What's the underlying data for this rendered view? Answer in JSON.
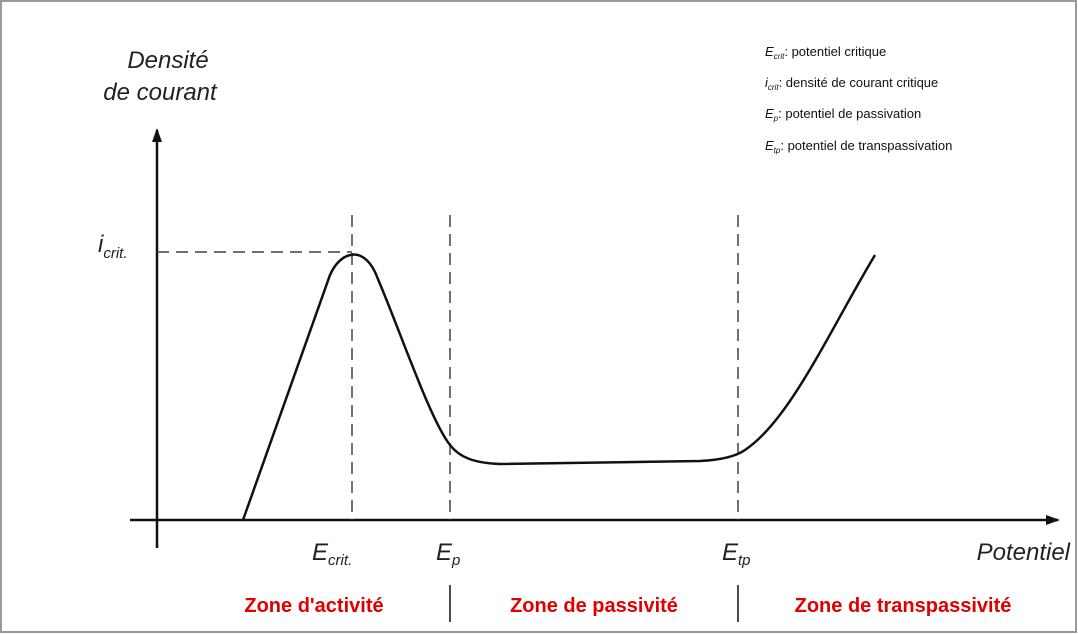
{
  "y_axis_label": [
    "Densité",
    "de courant"
  ],
  "x_axis_label": "Potentiel",
  "peak_label": {
    "symbol": "i",
    "sub": "crit."
  },
  "markers": [
    {
      "symbol": "E",
      "sub": "crit."
    },
    {
      "symbol": "E",
      "sub": "p"
    },
    {
      "symbol": "E",
      "sub": "tp"
    }
  ],
  "legend": [
    {
      "symbol": "E",
      "sub": "crit",
      "text": ": potentiel critique"
    },
    {
      "symbol": "i",
      "sub": "crit",
      "text": ": densité de courant critique"
    },
    {
      "symbol": "E",
      "sub": "p",
      "text": ": potentiel de passivation"
    },
    {
      "symbol": "E",
      "sub": "tp",
      "text": ": potentiel de transpassivation"
    }
  ],
  "zones": [
    "Zone d'activité",
    "Zone de passivité",
    "Zone de transpassivité"
  ]
}
